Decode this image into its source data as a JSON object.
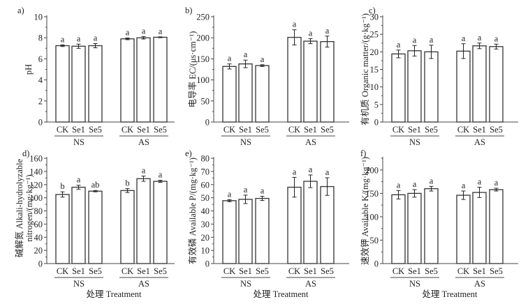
{
  "figure": {
    "xlabel": "处理 Treatment",
    "treatments": [
      "CK",
      "Se1",
      "Se5"
    ],
    "groups": [
      "NS",
      "AS"
    ]
  },
  "chart_data": [
    {
      "type": "bar",
      "panel": "a)",
      "title": "",
      "ylabel": "pH",
      "ylim": [
        0,
        10
      ],
      "yticks": [
        0,
        2,
        4,
        6,
        8,
        10
      ],
      "categories": [
        "CK",
        "Se1",
        "Se5"
      ],
      "groups": [
        "NS",
        "AS"
      ],
      "series": [
        {
          "name": "NS",
          "values": [
            7.25,
            7.2,
            7.25
          ],
          "errors": [
            0.08,
            0.2,
            0.2
          ],
          "letters": [
            "a",
            "a",
            "a"
          ]
        },
        {
          "name": "AS",
          "values": [
            7.9,
            8.0,
            8.05
          ],
          "errors": [
            0.08,
            0.12,
            0.04
          ],
          "letters": [
            "a",
            "a",
            "a"
          ]
        }
      ]
    },
    {
      "type": "bar",
      "panel": "b)",
      "title": "",
      "ylabel": "电导率 EC/(μs·cm⁻¹)",
      "ylim": [
        0,
        250
      ],
      "yticks": [
        0,
        50,
        100,
        150,
        200,
        250
      ],
      "categories": [
        "CK",
        "Se1",
        "Se5"
      ],
      "groups": [
        "NS",
        "AS"
      ],
      "series": [
        {
          "name": "NS",
          "values": [
            132,
            138,
            134
          ],
          "errors": [
            6,
            9,
            2
          ],
          "letters": [
            "a",
            "a",
            "a"
          ]
        },
        {
          "name": "AS",
          "values": [
            201,
            192,
            191
          ],
          "errors": [
            18,
            6,
            13
          ],
          "letters": [
            "a",
            "a",
            "a"
          ]
        }
      ]
    },
    {
      "type": "bar",
      "panel": "c)",
      "title": "",
      "ylabel": "有机质 Organic matter/(g·kg⁻¹)",
      "ylim": [
        0,
        30
      ],
      "yticks": [
        0,
        5,
        10,
        15,
        20,
        25,
        30
      ],
      "categories": [
        "CK",
        "Se1",
        "Se5"
      ],
      "groups": [
        "NS",
        "AS"
      ],
      "series": [
        {
          "name": "NS",
          "values": [
            19.4,
            20.3,
            20.0
          ],
          "errors": [
            1.1,
            1.5,
            1.9
          ],
          "letters": [
            "a",
            "a",
            "a"
          ]
        },
        {
          "name": "AS",
          "values": [
            20.2,
            21.7,
            21.5
          ],
          "errors": [
            2.1,
            0.8,
            0.7
          ],
          "letters": [
            "a",
            "a",
            "a"
          ]
        }
      ]
    },
    {
      "type": "bar",
      "panel": "d)",
      "title": "",
      "ylabel": "碱解氮 Alkali-hydrolyzable nitrogen/(mg·kg⁻¹)",
      "ylim": [
        0,
        160
      ],
      "yticks": [
        0,
        20,
        40,
        60,
        80,
        100,
        120,
        140,
        160
      ],
      "categories": [
        "CK",
        "Se1",
        "Se5"
      ],
      "groups": [
        "NS",
        "AS"
      ],
      "series": [
        {
          "name": "NS",
          "values": [
            105,
            116,
            110
          ],
          "errors": [
            4,
            3,
            1
          ],
          "letters": [
            "b",
            "a",
            "ab"
          ]
        },
        {
          "name": "AS",
          "values": [
            111,
            129,
            125
          ],
          "errors": [
            3,
            4,
            1.5
          ],
          "letters": [
            "b",
            "a",
            "a"
          ]
        }
      ]
    },
    {
      "type": "bar",
      "panel": "e)",
      "title": "",
      "ylabel": "有效磷 Available P/(mg·kg⁻¹)",
      "ylim": [
        0,
        80
      ],
      "yticks": [
        0,
        10,
        20,
        30,
        40,
        50,
        60,
        70,
        80
      ],
      "categories": [
        "CK",
        "Se1",
        "Se5"
      ],
      "groups": [
        "NS",
        "AS"
      ],
      "series": [
        {
          "name": "NS",
          "values": [
            47.8,
            48.8,
            49.5
          ],
          "errors": [
            0.8,
            3.2,
            1.6
          ],
          "letters": [
            "a",
            "a",
            "a"
          ]
        },
        {
          "name": "AS",
          "values": [
            58,
            62.5,
            58.5
          ],
          "errors": [
            7.5,
            4.8,
            6.7
          ],
          "letters": [
            "a",
            "a",
            "a"
          ]
        }
      ]
    },
    {
      "type": "bar",
      "panel": "f)",
      "title": "",
      "ylabel": "速效钾 Available K/(mg·kg⁻¹)",
      "ylim": [
        0,
        225
      ],
      "yticks": [
        0,
        50,
        100,
        150,
        200
      ],
      "categories": [
        "CK",
        "Se1",
        "Se5"
      ],
      "groups": [
        "NS",
        "AS"
      ],
      "series": [
        {
          "name": "NS",
          "values": [
            147,
            150,
            160
          ],
          "errors": [
            9,
            8,
            5
          ],
          "letters": [
            "a",
            "a",
            "a"
          ]
        },
        {
          "name": "AS",
          "values": [
            146,
            152,
            158
          ],
          "errors": [
            9,
            11,
            3
          ],
          "letters": [
            "a",
            "a",
            "a"
          ]
        }
      ]
    }
  ]
}
